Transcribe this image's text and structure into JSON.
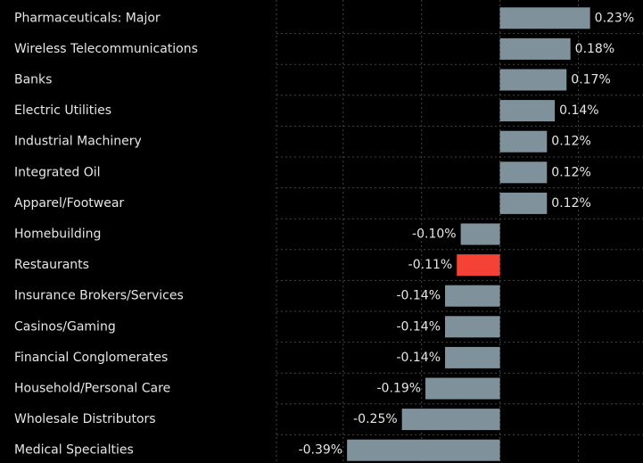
{
  "chart_data": {
    "type": "hbar",
    "categories": [
      "Pharmaceuticals: Major",
      "Wireless Telecommunications",
      "Banks",
      "Electric Utilities",
      "Industrial Machinery",
      "Integrated Oil",
      "Apparel/Footwear",
      "Homebuilding",
      "Restaurants",
      "Insurance Brokers/Services",
      "Casinos/Gaming",
      "Financial Conglomerates",
      "Household/Personal Care",
      "Wholesale Distributors",
      "Medical Specialties"
    ],
    "values": [
      0.23,
      0.18,
      0.17,
      0.14,
      0.12,
      0.12,
      0.12,
      -0.1,
      -0.11,
      -0.14,
      -0.14,
      -0.14,
      -0.19,
      -0.25,
      -0.39
    ],
    "value_labels": [
      "0.23%",
      "0.18%",
      "0.17%",
      "0.14%",
      "0.12%",
      "0.12%",
      "0.12%",
      "-0.10%",
      "-0.11%",
      "-0.14%",
      "-0.14%",
      "-0.14%",
      "-0.19%",
      "-0.25%",
      "-0.39%"
    ],
    "colors": [
      "#7f929c",
      "#7f929c",
      "#7f929c",
      "#7f929c",
      "#7f929c",
      "#7f929c",
      "#7f929c",
      "#7f929c",
      "#f44336",
      "#7f929c",
      "#7f929c",
      "#7f929c",
      "#7f929c",
      "#7f929c",
      "#7f929c"
    ],
    "xlim": [
      -0.57,
      0.365
    ],
    "xticks": [
      -0.4,
      -0.2,
      0,
      0.2
    ],
    "grid": true
  }
}
